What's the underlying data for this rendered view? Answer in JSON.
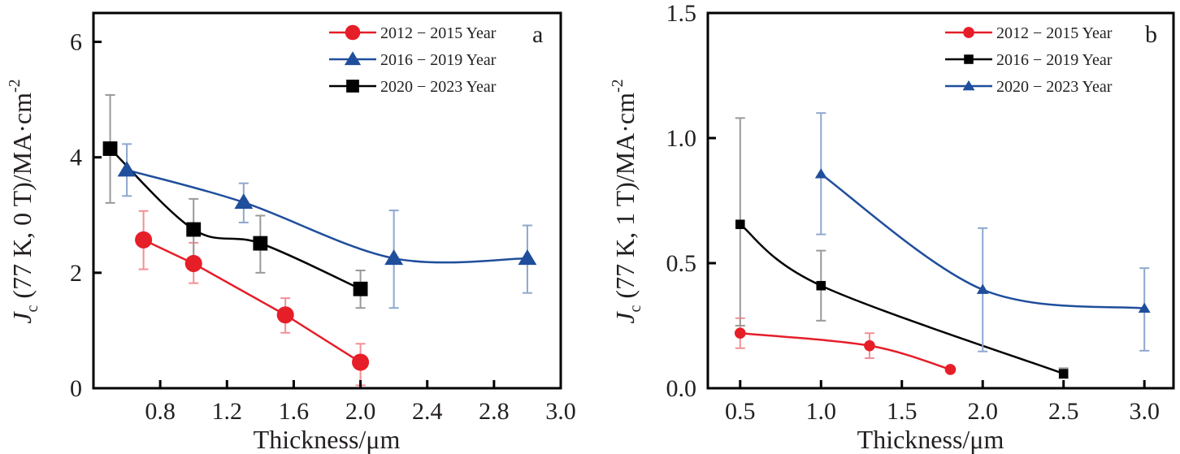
{
  "chart_data": [
    {
      "type": "line",
      "panel_label": "a",
      "title": "",
      "xlabel": "Thickness/μm",
      "ylabel": {
        "main": "J",
        "sub": "c",
        "rest": " (77 K, 0 T)/MA·cm",
        "sup": "-2"
      },
      "xlim": [
        0.4,
        3.2
      ],
      "ylim": [
        0,
        6.5
      ],
      "x_ticks": [
        0.8,
        1.2,
        1.6,
        2.0,
        2.4,
        2.8
      ],
      "x_tick_labels": [
        "0.8",
        "1.2",
        "1.6",
        "2.0",
        "2.4",
        "2.8"
      ],
      "x_end_label": "3.0",
      "y_ticks": [
        0,
        2,
        4,
        6
      ],
      "y_tick_labels": [
        "0",
        "2",
        "4",
        "6"
      ],
      "grid": false,
      "legend_position": "top-right",
      "series": [
        {
          "name": "2012 − 2015 Year",
          "color": "#e61e28",
          "marker": "circle",
          "curve": "linear",
          "x": [
            0.7,
            1.0,
            1.55,
            2.0
          ],
          "y": [
            2.57,
            2.16,
            1.27,
            0.45
          ],
          "err_low": [
            2.06,
            1.82,
            0.96,
            0.05
          ],
          "err_high": [
            3.07,
            2.52,
            1.56,
            0.77
          ]
        },
        {
          "name": "2016 − 2019 Year",
          "color": "#1f4e9c",
          "marker": "triangle",
          "curve": "smooth",
          "x": [
            0.6,
            1.3,
            2.2,
            3.0
          ],
          "y": [
            3.78,
            3.22,
            2.25,
            2.25
          ],
          "err_low": [
            3.33,
            2.87,
            1.39,
            1.65
          ],
          "err_high": [
            4.23,
            3.55,
            3.08,
            2.82
          ]
        },
        {
          "name": "2020 − 2023 Year",
          "color": "#000000",
          "marker": "square",
          "curve": "smooth",
          "x": [
            0.5,
            1.0,
            1.4,
            2.0
          ],
          "y": [
            4.15,
            2.75,
            2.51,
            1.72
          ],
          "err_low": [
            3.21,
            2.2,
            2.0,
            1.39
          ],
          "err_high": [
            5.08,
            3.28,
            2.99,
            2.04
          ]
        }
      ]
    },
    {
      "type": "line",
      "panel_label": "b",
      "title": "",
      "xlabel": "Thickness/μm",
      "ylabel": {
        "main": "J",
        "sub": "c",
        "rest": " (77 K, 1 T)/MA·cm",
        "sup": "-2"
      },
      "xlim": [
        0.3,
        3.18
      ],
      "ylim": [
        0,
        1.5
      ],
      "x_ticks": [
        0.5,
        1.0,
        1.5,
        2.0,
        2.5,
        3.0
      ],
      "x_tick_labels": [
        "0.5",
        "1.0",
        "1.5",
        "2.0",
        "2.5",
        "3.0"
      ],
      "y_ticks": [
        0,
        0.5,
        1.0,
        1.5
      ],
      "y_tick_labels": [
        "0.0",
        "0.5",
        "1.0",
        "1.5"
      ],
      "grid": false,
      "legend_position": "top-right",
      "series": [
        {
          "name": "2012 − 2015 Year",
          "color": "#e61e28",
          "marker": "circle",
          "curve": "smooth",
          "x": [
            0.5,
            1.3,
            1.8
          ],
          "y": [
            0.22,
            0.17,
            0.075
          ],
          "err_low": [
            0.16,
            0.12,
            null
          ],
          "err_high": [
            0.28,
            0.22,
            null
          ]
        },
        {
          "name": "2016 − 2019 Year",
          "color": "#000000",
          "marker": "square",
          "curve": "smooth",
          "x": [
            0.5,
            1.0,
            2.5
          ],
          "y": [
            0.655,
            0.41,
            0.058
          ],
          "err_low": [
            0.25,
            0.27,
            0.04
          ],
          "err_high": [
            1.08,
            0.55,
            0.08
          ]
        },
        {
          "name": "2020 − 2023 Year",
          "color": "#1f4e9c",
          "marker": "triangle",
          "curve": "smooth",
          "x": [
            1.0,
            2.0,
            3.0
          ],
          "y": [
            0.856,
            0.394,
            0.319
          ],
          "err_low": [
            0.615,
            0.147,
            0.15
          ],
          "err_high": [
            1.1,
            0.64,
            0.48
          ]
        }
      ]
    }
  ]
}
